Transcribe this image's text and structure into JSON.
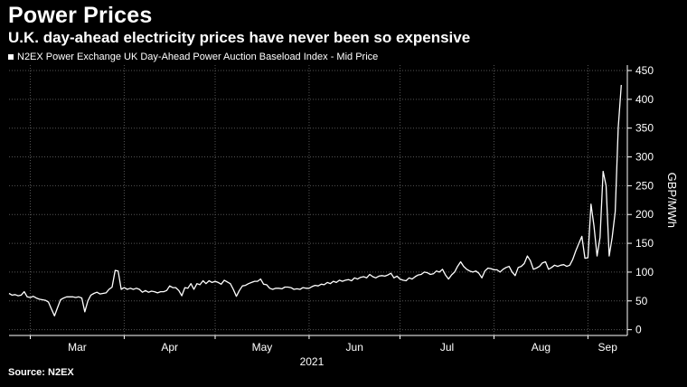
{
  "header": {
    "title": "Power Prices",
    "subtitle": "U.K. day-ahead electricity prices have never been so expensive",
    "legend": "N2EX Power Exchange UK Day-Ahead Power Auction Baseload Index - Mid Price"
  },
  "footer": {
    "source": "Source: N2EX"
  },
  "colors": {
    "background": "#000000",
    "line": "#ffffff",
    "grid": "#555555"
  },
  "chart_data": {
    "type": "line",
    "title": "Power Prices",
    "subtitle": "U.K. day-ahead electricity prices have never been so expensive",
    "ylabel": "GBP/MWh",
    "year_label": "2021",
    "ylim": [
      -10,
      450
    ],
    "yticks": [
      0,
      50,
      100,
      150,
      200,
      250,
      300,
      350,
      400,
      450
    ],
    "xlim": [
      "2021-02-22",
      "2021-09-14"
    ],
    "xticks": [
      {
        "date": "2021-03-01",
        "label": "Mar"
      },
      {
        "date": "2021-04-01",
        "label": "Apr"
      },
      {
        "date": "2021-05-01",
        "label": "May"
      },
      {
        "date": "2021-06-01",
        "label": "Jun"
      },
      {
        "date": "2021-07-01",
        "label": "Jul"
      },
      {
        "date": "2021-08-01",
        "label": "Aug"
      },
      {
        "date": "2021-09-01",
        "label": "Sep"
      }
    ],
    "gridlines": "dotted",
    "legend_position": "top-left",
    "series": [
      {
        "name": "N2EX Power Exchange UK Day-Ahead Power Auction Baseload Index - Mid Price",
        "points": [
          [
            "2021-02-22",
            63
          ],
          [
            "2021-02-23",
            60
          ],
          [
            "2021-02-24",
            61
          ],
          [
            "2021-02-25",
            59
          ],
          [
            "2021-02-26",
            60
          ],
          [
            "2021-02-27",
            66
          ],
          [
            "2021-02-28",
            57
          ],
          [
            "2021-03-01",
            56
          ],
          [
            "2021-03-02",
            58
          ],
          [
            "2021-03-03",
            55
          ],
          [
            "2021-03-04",
            53
          ],
          [
            "2021-03-05",
            52
          ],
          [
            "2021-03-06",
            51
          ],
          [
            "2021-03-07",
            48
          ],
          [
            "2021-03-08",
            36
          ],
          [
            "2021-03-09",
            24
          ],
          [
            "2021-03-10",
            38
          ],
          [
            "2021-03-11",
            52
          ],
          [
            "2021-03-12",
            55
          ],
          [
            "2021-03-13",
            57
          ],
          [
            "2021-03-14",
            57
          ],
          [
            "2021-03-15",
            57
          ],
          [
            "2021-03-16",
            56
          ],
          [
            "2021-03-17",
            57
          ],
          [
            "2021-03-18",
            55
          ],
          [
            "2021-03-19",
            31
          ],
          [
            "2021-03-20",
            50
          ],
          [
            "2021-03-21",
            60
          ],
          [
            "2021-03-22",
            63
          ],
          [
            "2021-03-23",
            65
          ],
          [
            "2021-03-24",
            62
          ],
          [
            "2021-03-25",
            63
          ],
          [
            "2021-03-26",
            64
          ],
          [
            "2021-03-27",
            70
          ],
          [
            "2021-03-28",
            74
          ],
          [
            "2021-03-29",
            103
          ],
          [
            "2021-03-30",
            102
          ],
          [
            "2021-03-31",
            70
          ],
          [
            "2021-04-01",
            73
          ],
          [
            "2021-04-02",
            70
          ],
          [
            "2021-04-03",
            72
          ],
          [
            "2021-04-04",
            70
          ],
          [
            "2021-04-05",
            72
          ],
          [
            "2021-04-06",
            70
          ],
          [
            "2021-04-07",
            65
          ],
          [
            "2021-04-08",
            68
          ],
          [
            "2021-04-09",
            65
          ],
          [
            "2021-04-10",
            67
          ],
          [
            "2021-04-11",
            66
          ],
          [
            "2021-04-12",
            64
          ],
          [
            "2021-04-13",
            66
          ],
          [
            "2021-04-14",
            66
          ],
          [
            "2021-04-15",
            68
          ],
          [
            "2021-04-16",
            76
          ],
          [
            "2021-04-17",
            73
          ],
          [
            "2021-04-18",
            73
          ],
          [
            "2021-04-19",
            68
          ],
          [
            "2021-04-20",
            59
          ],
          [
            "2021-04-21",
            73
          ],
          [
            "2021-04-22",
            72
          ],
          [
            "2021-04-23",
            80
          ],
          [
            "2021-04-24",
            70
          ],
          [
            "2021-04-25",
            80
          ],
          [
            "2021-04-26",
            78
          ],
          [
            "2021-04-27",
            85
          ],
          [
            "2021-04-28",
            80
          ],
          [
            "2021-04-29",
            85
          ],
          [
            "2021-04-30",
            82
          ],
          [
            "2021-05-01",
            84
          ],
          [
            "2021-05-02",
            82
          ],
          [
            "2021-05-03",
            79
          ],
          [
            "2021-05-04",
            86
          ],
          [
            "2021-05-05",
            83
          ],
          [
            "2021-05-06",
            80
          ],
          [
            "2021-05-07",
            70
          ],
          [
            "2021-05-08",
            58
          ],
          [
            "2021-05-09",
            68
          ],
          [
            "2021-05-10",
            76
          ],
          [
            "2021-05-11",
            77
          ],
          [
            "2021-05-12",
            80
          ],
          [
            "2021-05-13",
            82
          ],
          [
            "2021-05-14",
            84
          ],
          [
            "2021-05-15",
            84
          ],
          [
            "2021-05-16",
            88
          ],
          [
            "2021-05-17",
            79
          ],
          [
            "2021-05-18",
            78
          ],
          [
            "2021-05-19",
            72
          ],
          [
            "2021-05-20",
            70
          ],
          [
            "2021-05-21",
            72
          ],
          [
            "2021-05-22",
            72
          ],
          [
            "2021-05-23",
            71
          ],
          [
            "2021-05-24",
            74
          ],
          [
            "2021-05-25",
            74
          ],
          [
            "2021-05-26",
            73
          ],
          [
            "2021-05-27",
            70
          ],
          [
            "2021-05-28",
            71
          ],
          [
            "2021-05-29",
            70
          ],
          [
            "2021-05-30",
            73
          ],
          [
            "2021-05-31",
            72
          ],
          [
            "2021-06-01",
            72
          ],
          [
            "2021-06-02",
            75
          ],
          [
            "2021-06-03",
            77
          ],
          [
            "2021-06-04",
            76
          ],
          [
            "2021-06-05",
            79
          ],
          [
            "2021-06-06",
            78
          ],
          [
            "2021-06-07",
            82
          ],
          [
            "2021-06-08",
            80
          ],
          [
            "2021-06-09",
            84
          ],
          [
            "2021-06-10",
            82
          ],
          [
            "2021-06-11",
            86
          ],
          [
            "2021-06-12",
            84
          ],
          [
            "2021-06-13",
            86
          ],
          [
            "2021-06-14",
            87
          ],
          [
            "2021-06-15",
            85
          ],
          [
            "2021-06-16",
            90
          ],
          [
            "2021-06-17",
            88
          ],
          [
            "2021-06-18",
            91
          ],
          [
            "2021-06-19",
            92
          ],
          [
            "2021-06-20",
            90
          ],
          [
            "2021-06-21",
            96
          ],
          [
            "2021-06-22",
            92
          ],
          [
            "2021-06-23",
            90
          ],
          [
            "2021-06-24",
            93
          ],
          [
            "2021-06-25",
            94
          ],
          [
            "2021-06-26",
            93
          ],
          [
            "2021-06-27",
            95
          ],
          [
            "2021-06-28",
            98
          ],
          [
            "2021-06-29",
            90
          ],
          [
            "2021-06-30",
            93
          ],
          [
            "2021-07-01",
            88
          ],
          [
            "2021-07-02",
            86
          ],
          [
            "2021-07-03",
            85
          ],
          [
            "2021-07-04",
            90
          ],
          [
            "2021-07-05",
            88
          ],
          [
            "2021-07-06",
            92
          ],
          [
            "2021-07-07",
            95
          ],
          [
            "2021-07-08",
            96
          ],
          [
            "2021-07-09",
            100
          ],
          [
            "2021-07-10",
            99
          ],
          [
            "2021-07-11",
            96
          ],
          [
            "2021-07-12",
            97
          ],
          [
            "2021-07-13",
            102
          ],
          [
            "2021-07-14",
            100
          ],
          [
            "2021-07-15",
            105
          ],
          [
            "2021-07-16",
            95
          ],
          [
            "2021-07-17",
            88
          ],
          [
            "2021-07-18",
            95
          ],
          [
            "2021-07-19",
            100
          ],
          [
            "2021-07-20",
            110
          ],
          [
            "2021-07-21",
            118
          ],
          [
            "2021-07-22",
            110
          ],
          [
            "2021-07-23",
            105
          ],
          [
            "2021-07-24",
            102
          ],
          [
            "2021-07-25",
            100
          ],
          [
            "2021-07-26",
            102
          ],
          [
            "2021-07-27",
            98
          ],
          [
            "2021-07-28",
            90
          ],
          [
            "2021-07-29",
            102
          ],
          [
            "2021-07-30",
            107
          ],
          [
            "2021-07-31",
            106
          ],
          [
            "2021-08-01",
            104
          ],
          [
            "2021-08-02",
            104
          ],
          [
            "2021-08-03",
            100
          ],
          [
            "2021-08-04",
            105
          ],
          [
            "2021-08-05",
            108
          ],
          [
            "2021-08-06",
            110
          ],
          [
            "2021-08-07",
            100
          ],
          [
            "2021-08-08",
            94
          ],
          [
            "2021-08-09",
            108
          ],
          [
            "2021-08-10",
            110
          ],
          [
            "2021-08-11",
            115
          ],
          [
            "2021-08-12",
            128
          ],
          [
            "2021-08-13",
            120
          ],
          [
            "2021-08-14",
            105
          ],
          [
            "2021-08-15",
            107
          ],
          [
            "2021-08-16",
            110
          ],
          [
            "2021-08-17",
            116
          ],
          [
            "2021-08-18",
            118
          ],
          [
            "2021-08-19",
            105
          ],
          [
            "2021-08-20",
            108
          ],
          [
            "2021-08-21",
            112
          ],
          [
            "2021-08-22",
            110
          ],
          [
            "2021-08-23",
            112
          ],
          [
            "2021-08-24",
            113
          ],
          [
            "2021-08-25",
            110
          ],
          [
            "2021-08-26",
            112
          ],
          [
            "2021-08-27",
            122
          ],
          [
            "2021-08-28",
            137
          ],
          [
            "2021-08-29",
            150
          ],
          [
            "2021-08-30",
            162
          ],
          [
            "2021-08-31",
            124
          ],
          [
            "2021-09-01",
            125
          ],
          [
            "2021-09-02",
            218
          ],
          [
            "2021-09-03",
            180
          ],
          [
            "2021-09-04",
            128
          ],
          [
            "2021-09-05",
            160
          ],
          [
            "2021-09-06",
            275
          ],
          [
            "2021-09-07",
            250
          ],
          [
            "2021-09-08",
            128
          ],
          [
            "2021-09-09",
            160
          ],
          [
            "2021-09-10",
            205
          ],
          [
            "2021-09-11",
            350
          ],
          [
            "2021-09-12",
            425
          ]
        ]
      }
    ]
  }
}
